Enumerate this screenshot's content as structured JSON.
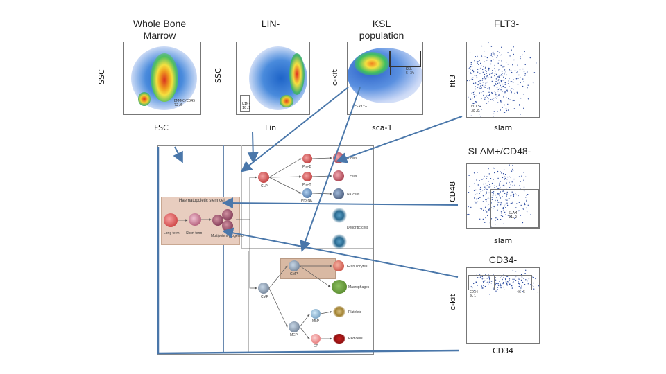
{
  "titles": {
    "whole_bone_marrow": "Whole Bone Marrow",
    "lin_minus": "LIN-",
    "ksl_population": "KSL population",
    "flt3_minus": "FLT3-",
    "slam_cd48": "SLAM+/CD48-",
    "cd34_minus": "CD34-"
  },
  "axes": {
    "p1_x": "FSC",
    "p1_y": "SSC",
    "p2_x": "Lin",
    "p2_y": "SSC",
    "p3_x": "sca-1",
    "p3_y": "c-kit",
    "p4_x": "slam",
    "p4_y": "flt3",
    "p5_x": "slam",
    "p5_y": "CD48",
    "p6_x": "CD34",
    "p6_y": "c-kit"
  },
  "gates": {
    "p1": "BMMNC/CD45\n72.6",
    "p2": "LIN-\n10.1",
    "p3a": "KSL\n5.3%",
    "p3b": "c-kit+",
    "p4": "FLT3-\n38.8",
    "p5": "SLAM+\n21.2",
    "p6a": "CD34-\n0.1",
    "p6b": "46.5"
  },
  "hierarchy": {
    "hsc_box_label": "Haematopoietic stem cell",
    "long_term": "Long term",
    "short_term": "Short term",
    "multipotent": "Multipotent progenitor",
    "clp": "CLP",
    "cmp": "CMP",
    "gmp": "GMP",
    "mep": "MEP",
    "mkp": "MkP",
    "ep": "EP",
    "pro_b": "Pro-B",
    "pro_t": "Pro-T",
    "pro_nk": "Pro-NK",
    "outputs": [
      "B cells",
      "T cells",
      "NK cells",
      "Dendritic cells",
      "",
      "Granulocytes",
      "Macrophages",
      "Platelets",
      "Red cells"
    ]
  },
  "colors": {
    "arrow": "#4a77aa",
    "hsc_box": "#e8cdbf",
    "gmp_box": "#d9b9a3",
    "frame": "#6a8ab0"
  }
}
